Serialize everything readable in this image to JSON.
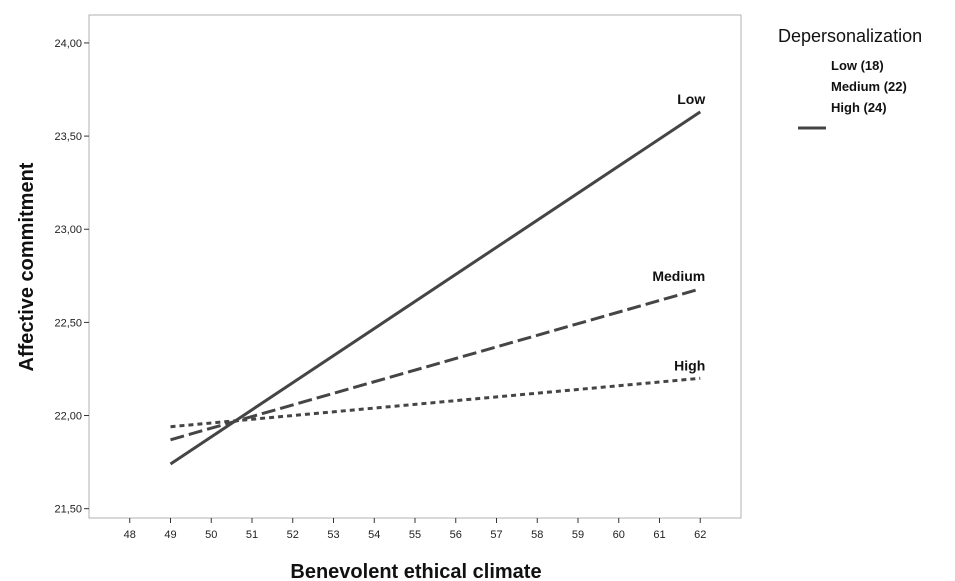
{
  "chart_data": {
    "type": "line",
    "xlabel": "Benevolent ethical climate",
    "ylabel": "Affective commitment",
    "xlim": [
      47,
      63
    ],
    "ylim": [
      21.45,
      24.15
    ],
    "x_ticks": [
      48,
      49,
      50,
      51,
      52,
      53,
      54,
      55,
      56,
      57,
      58,
      59,
      60,
      61,
      62
    ],
    "x_tick_labels": [
      "48",
      "49",
      "50",
      "51",
      "52",
      "53",
      "54",
      "55",
      "56",
      "57",
      "58",
      "59",
      "60",
      "61",
      "62"
    ],
    "y_ticks": [
      21.5,
      22.0,
      22.5,
      23.0,
      23.5,
      24.0
    ],
    "y_tick_labels": [
      "21,50",
      "22,00",
      "22,50",
      "23,00",
      "23,50",
      "24,00"
    ],
    "grid": false,
    "legend": {
      "title": "Depersonalization",
      "placement": "right",
      "entries": [
        "Low (18)",
        "Medium (22)",
        "High (24)"
      ]
    },
    "series": [
      {
        "name": "Low (18)",
        "label": "Low",
        "style": "solid",
        "color": "#454545",
        "x": [
          49,
          62
        ],
        "y": [
          21.74,
          23.63
        ]
      },
      {
        "name": "Medium (22)",
        "label": "Medium",
        "style": "dashed",
        "color": "#454545",
        "x": [
          49,
          62
        ],
        "y": [
          21.87,
          22.68
        ]
      },
      {
        "name": "High (24)",
        "label": "High",
        "style": "dotted",
        "color": "#454545",
        "x": [
          49,
          62
        ],
        "y": [
          21.94,
          22.2
        ]
      }
    ]
  }
}
